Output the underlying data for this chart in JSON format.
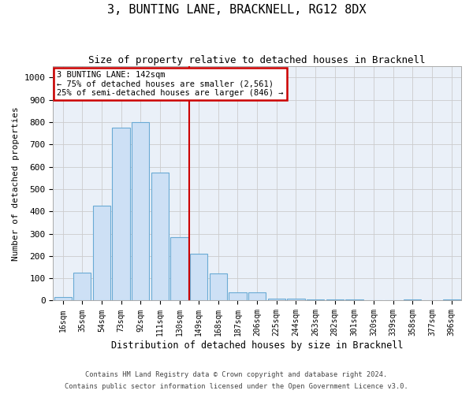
{
  "title": "3, BUNTING LANE, BRACKNELL, RG12 8DX",
  "subtitle": "Size of property relative to detached houses in Bracknell",
  "xlabel": "Distribution of detached houses by size in Bracknell",
  "ylabel": "Number of detached properties",
  "categories": [
    "16sqm",
    "35sqm",
    "54sqm",
    "73sqm",
    "92sqm",
    "111sqm",
    "130sqm",
    "149sqm",
    "168sqm",
    "187sqm",
    "206sqm",
    "225sqm",
    "244sqm",
    "263sqm",
    "282sqm",
    "301sqm",
    "320sqm",
    "339sqm",
    "358sqm",
    "377sqm",
    "396sqm"
  ],
  "values": [
    15,
    125,
    425,
    775,
    800,
    575,
    285,
    210,
    120,
    37,
    37,
    10,
    8,
    5,
    5,
    5,
    0,
    0,
    5,
    0,
    5
  ],
  "bar_color": "#cde0f5",
  "bar_edge_color": "#6aaad4",
  "grid_color": "#cccccc",
  "bg_color": "#eaf0f8",
  "vline_x_index": 6,
  "vline_color": "#cc0000",
  "annotation_text": "3 BUNTING LANE: 142sqm\n← 75% of detached houses are smaller (2,561)\n25% of semi-detached houses are larger (846) →",
  "annotation_box_color": "#cc0000",
  "ylim": [
    0,
    1050
  ],
  "yticks": [
    0,
    100,
    200,
    300,
    400,
    500,
    600,
    700,
    800,
    900,
    1000
  ],
  "footnote1": "Contains HM Land Registry data © Crown copyright and database right 2024.",
  "footnote2": "Contains public sector information licensed under the Open Government Licence v3.0."
}
